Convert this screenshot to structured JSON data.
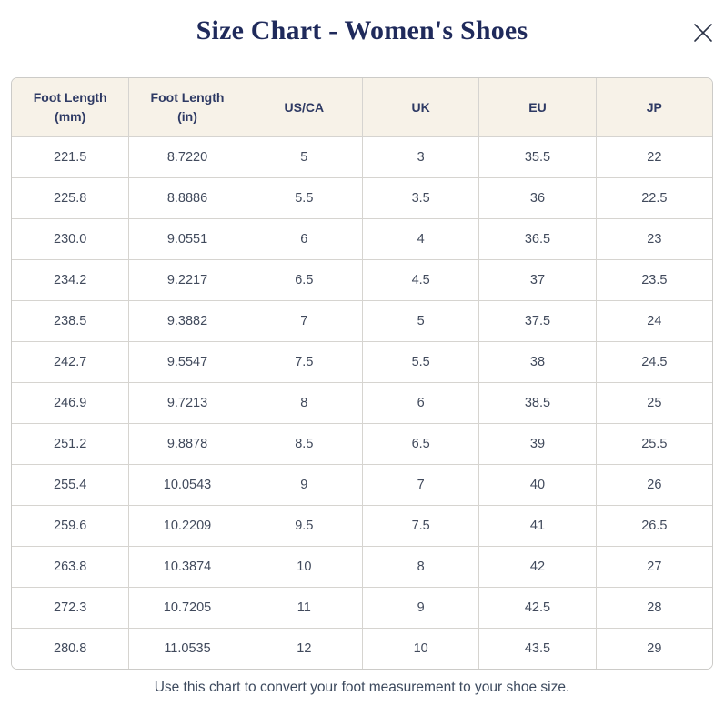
{
  "modal": {
    "title": "Size Chart - Women's Shoes",
    "footer_note": "Use this chart to convert your foot measurement to your shoe size."
  },
  "colors": {
    "title_navy": "#1f2a5b",
    "header_bg": "#f7f2e8",
    "header_text": "#2e3a64",
    "cell_text": "#414a5c",
    "border": "#d6d4d0",
    "close_icon": "#2b3347"
  },
  "table": {
    "headers": [
      "Foot Length\n(mm)",
      "Foot Length\n(in)",
      "US/CA",
      "UK",
      "EU",
      "JP"
    ],
    "rows": [
      [
        "221.5",
        "8.7220",
        "5",
        "3",
        "35.5",
        "22"
      ],
      [
        "225.8",
        "8.8886",
        "5.5",
        "3.5",
        "36",
        "22.5"
      ],
      [
        "230.0",
        "9.0551",
        "6",
        "4",
        "36.5",
        "23"
      ],
      [
        "234.2",
        "9.2217",
        "6.5",
        "4.5",
        "37",
        "23.5"
      ],
      [
        "238.5",
        "9.3882",
        "7",
        "5",
        "37.5",
        "24"
      ],
      [
        "242.7",
        "9.5547",
        "7.5",
        "5.5",
        "38",
        "24.5"
      ],
      [
        "246.9",
        "9.7213",
        "8",
        "6",
        "38.5",
        "25"
      ],
      [
        "251.2",
        "9.8878",
        "8.5",
        "6.5",
        "39",
        "25.5"
      ],
      [
        "255.4",
        "10.0543",
        "9",
        "7",
        "40",
        "26"
      ],
      [
        "259.6",
        "10.2209",
        "9.5",
        "7.5",
        "41",
        "26.5"
      ],
      [
        "263.8",
        "10.3874",
        "10",
        "8",
        "42",
        "27"
      ],
      [
        "272.3",
        "10.7205",
        "11",
        "9",
        "42.5",
        "28"
      ],
      [
        "280.8",
        "11.0535",
        "12",
        "10",
        "43.5",
        "29"
      ]
    ]
  }
}
